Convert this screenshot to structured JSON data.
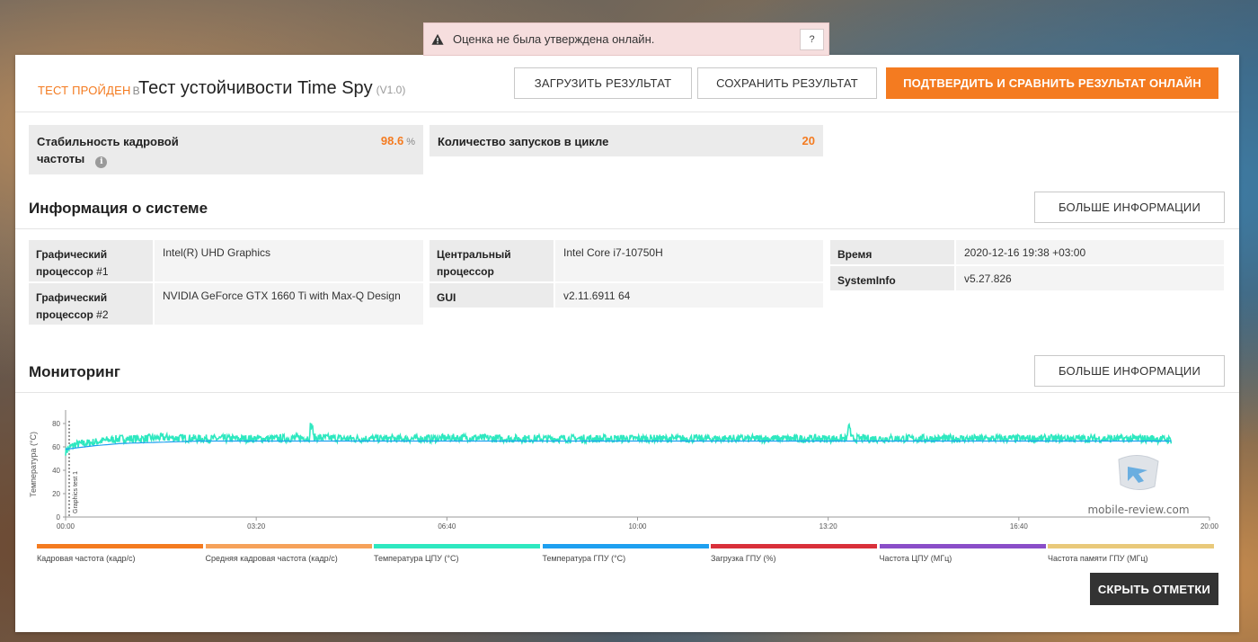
{
  "alert": {
    "text": "Оценка не была утверждена онлайн.",
    "help_label": "?"
  },
  "header": {
    "status": "ТЕСТ ПРОЙДЕН",
    "status_suffix": "В",
    "title": "Тест устойчивости Time Spy",
    "version": "(V1.0)",
    "load_button": "ЗАГРУЗИТЬ РЕЗУЛЬТАТ",
    "save_button": "СОХРАНИТЬ РЕЗУЛЬТАТ",
    "validate_button": "ПОДТВЕРДИТЬ И СРАВНИТЬ РЕЗУЛЬТАТ ОНЛАЙН"
  },
  "scores": {
    "stability_label_1": "Стабильность кадровой",
    "stability_label_2": "частоты",
    "stability_value": "98.6",
    "stability_unit": "%",
    "loops_label": "Количество запусков в цикле",
    "loops_value": "20"
  },
  "system_info": {
    "title": "Информация о системе",
    "more_button": "БОЛЬШЕ ИНФОРМАЦИИ",
    "gpu1_label_1": "Графический",
    "gpu1_label_2": "процессор",
    "gpu1_num": "#1",
    "gpu1_value": "Intel(R) UHD Graphics",
    "gpu2_label_1": "Графический",
    "gpu2_label_2": "процессор",
    "gpu2_num": "#2",
    "gpu2_value": "NVIDIA GeForce GTX 1660 Ti with Max-Q Design",
    "cpu_label_1": "Центральный",
    "cpu_label_2": "процессор",
    "cpu_value": "Intel Core i7-10750H",
    "gui_label": "GUI",
    "gui_value": "v2.11.6911 64",
    "time_label": "Время",
    "time_value": "2020-12-16 19:38 +03:00",
    "sysinfo_label": "SystemInfo",
    "sysinfo_value": "v5.27.826"
  },
  "monitoring": {
    "title": "Мониторинг",
    "more_button": "БОЛЬШЕ ИНФОРМАЦИИ",
    "hide_button": "СКРЫТЬ ОТМЕТКИ",
    "legend": [
      {
        "label": "Кадровая частота (кадр/с)",
        "color": "#f47b20"
      },
      {
        "label": "Средняя кадровая частота (кадр/с)",
        "color": "#f6a25a"
      },
      {
        "label": "Температура ЦПУ (°C)",
        "color": "#2ee8c0"
      },
      {
        "label": "Температура ГПУ (°C)",
        "color": "#1ea0f0"
      },
      {
        "label": "Загрузка ГПУ (%)",
        "color": "#d9303a"
      },
      {
        "label": "Частота ЦПУ (МГц)",
        "color": "#8a4ec8"
      },
      {
        "label": "Частота памяти ГПУ (МГц)",
        "color": "#e9c97a"
      }
    ]
  },
  "watermark": "mobile-review.com",
  "chart_data": {
    "type": "line",
    "ylabel": "Температура (°C)",
    "marker_label": "Graphics test 1",
    "y_ticks": [
      0,
      20,
      40,
      60,
      80
    ],
    "ylim": [
      0,
      90
    ],
    "x_ticks": [
      "00:00",
      "03:20",
      "06:40",
      "10:00",
      "13:20",
      "16:40",
      "20:00"
    ],
    "xlim_seconds": [
      0,
      1200
    ],
    "series": [
      {
        "name": "Температура ЦПУ (°C)",
        "color": "#2ee8c0",
        "x": [
          0,
          5,
          10,
          20,
          30,
          45,
          60,
          80,
          100,
          140,
          180,
          220,
          260,
          300,
          340,
          380,
          420,
          460,
          500,
          540,
          580,
          620,
          660,
          700,
          740,
          780,
          820,
          860,
          900,
          940,
          980,
          1020,
          1060,
          1100,
          1140,
          1160
        ],
        "y": [
          56,
          60,
          62,
          63,
          64,
          66,
          67,
          67,
          68,
          67,
          67,
          67,
          68,
          67,
          67,
          67,
          68,
          67,
          67,
          67,
          67,
          67,
          67,
          67,
          67,
          67,
          67,
          67,
          67,
          67,
          67,
          67,
          67,
          67,
          67,
          66
        ]
      },
      {
        "name": "Температура ГПУ (°C)",
        "color": "#1ea0f0",
        "x": [
          0,
          10,
          30,
          60,
          100,
          140,
          200,
          400,
          600,
          800,
          1000,
          1160
        ],
        "y": [
          58,
          59,
          61,
          63,
          64,
          65,
          65,
          65,
          65,
          65,
          65,
          65
        ]
      }
    ]
  }
}
